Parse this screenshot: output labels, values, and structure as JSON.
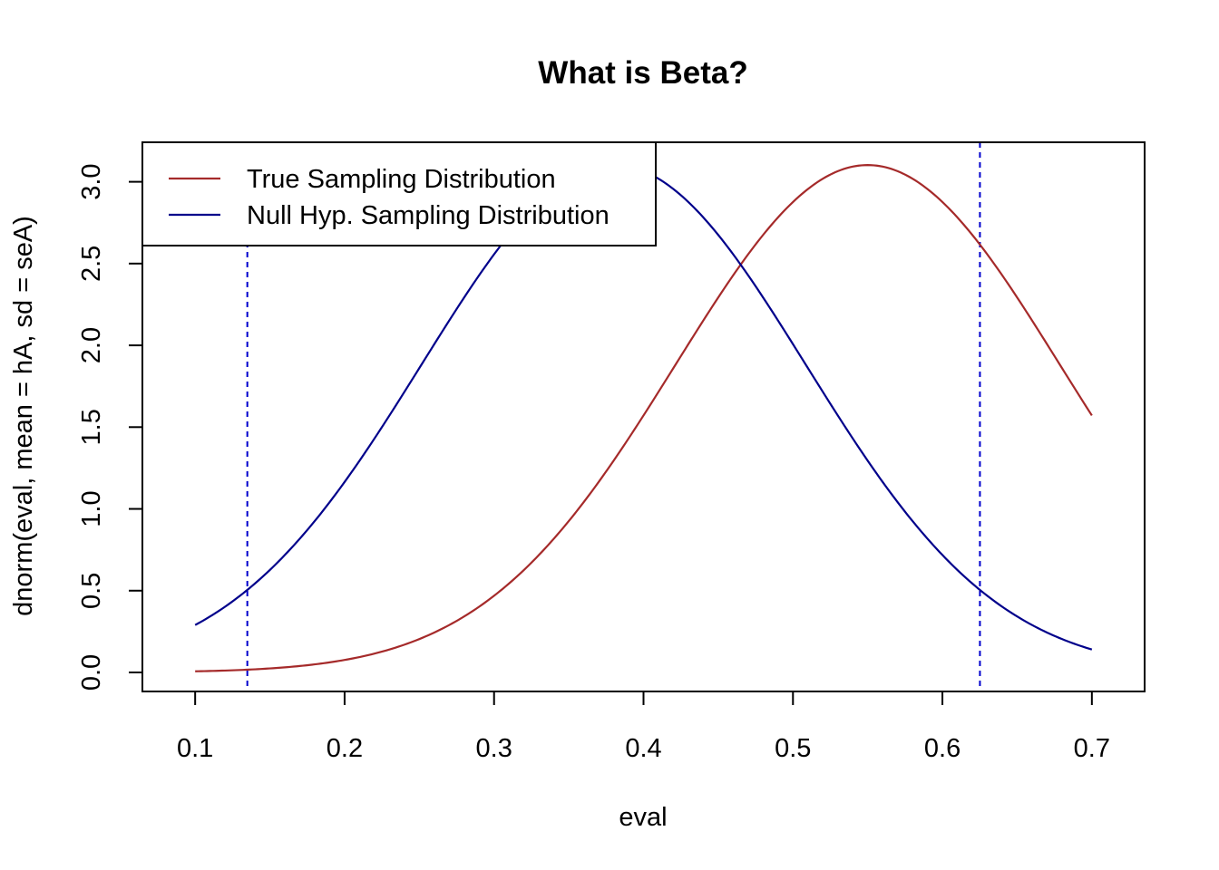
{
  "chart_data": {
    "type": "line",
    "title": "What is Beta?",
    "xlabel": "eval",
    "ylabel": "dnorm(eval, mean = hA, sd = seA)",
    "xlim": [
      0.0647,
      0.7353
    ],
    "ylim": [
      -0.1163,
      3.2416
    ],
    "x_ticks": [
      0.1,
      0.2,
      0.3,
      0.4,
      0.5,
      0.6,
      0.7
    ],
    "x_tick_labels": [
      "0.1",
      "0.2",
      "0.3",
      "0.4",
      "0.5",
      "0.6",
      "0.7"
    ],
    "y_ticks": [
      0.0,
      0.5,
      1.0,
      1.5,
      2.0,
      2.5,
      3.0
    ],
    "y_tick_labels": [
      "0.0",
      "0.5",
      "1.0",
      "1.5",
      "2.0",
      "2.5",
      "3.0"
    ],
    "x_range": [
      0.1,
      0.7
    ],
    "series": [
      {
        "name": "True Sampling Distribution",
        "color": "#a52a2a",
        "mean": 0.55,
        "sd": 0.1286
      },
      {
        "name": "Null Hyp. Sampling Distribution",
        "color": "#00008b",
        "mean": 0.38,
        "sd": 0.1286
      }
    ],
    "vlines": [
      {
        "x": 0.1349,
        "color": "#0000cd",
        "style": "dashed"
      },
      {
        "x": 0.6251,
        "color": "#0000cd",
        "style": "dashed"
      }
    ],
    "legend": {
      "position": "top-left",
      "entries": [
        "True Sampling Distribution",
        "Null Hyp. Sampling Distribution"
      ]
    },
    "grid": false
  }
}
